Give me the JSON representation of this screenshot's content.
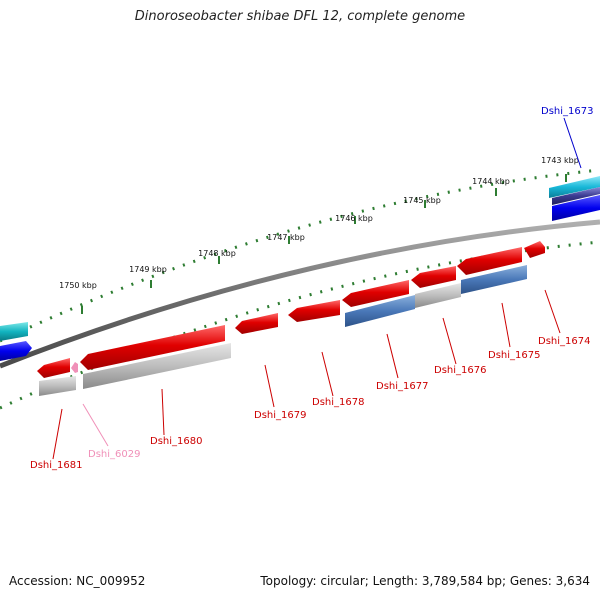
{
  "title": "Dinoroseobacter shibae DFL 12, complete genome",
  "footer": {
    "accession": "Accession: NC_009952",
    "summary": "Topology: circular; Length: 3,789,584 bp; Genes: 3,634"
  },
  "ticks": [
    "1743 kbp",
    "1744 kbp",
    "1745 kbp",
    "1746 kbp",
    "1747 kbp",
    "1748 kbp",
    "1749 kbp",
    "1750 kbp"
  ],
  "gene_labels": [
    {
      "text": "Dshi_1673",
      "color": "#0000cc"
    },
    {
      "text": "Dshi_1674",
      "color": "#cc0000"
    },
    {
      "text": "Dshi_1675",
      "color": "#cc0000"
    },
    {
      "text": "Dshi_1676",
      "color": "#cc0000"
    },
    {
      "text": "Dshi_1677",
      "color": "#cc0000"
    },
    {
      "text": "Dshi_1678",
      "color": "#cc0000"
    },
    {
      "text": "Dshi_1679",
      "color": "#cc0000"
    },
    {
      "text": "Dshi_1680",
      "color": "#cc0000"
    },
    {
      "text": "Dshi_6029",
      "color": "#f090b8"
    },
    {
      "text": "Dshi_1681",
      "color": "#cc0000"
    }
  ],
  "colors": {
    "backbone": "#7a7a7a",
    "tick": "#2e7d32",
    "gene_reverse": "#e00000",
    "gene_forward_blue": "#0000ee",
    "gene_cyan": "#18b8d8",
    "cds_gray": "#b8b8b8",
    "cds_steelblue": "#4a78b8",
    "rna_pink": "#f090b8"
  }
}
